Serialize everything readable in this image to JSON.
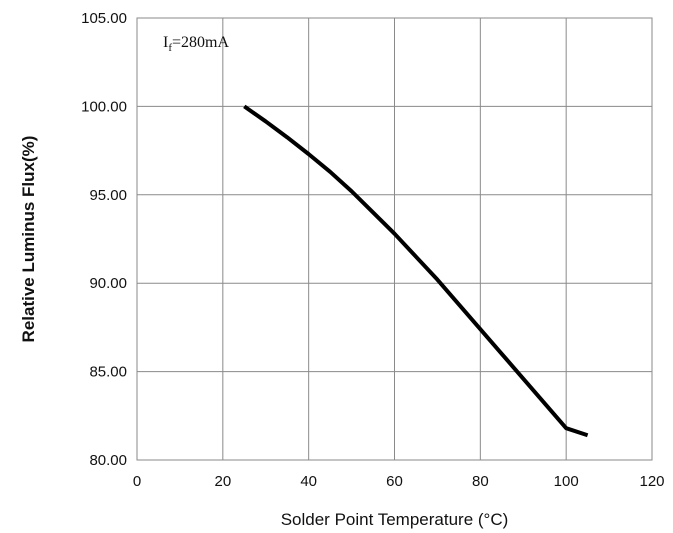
{
  "chart_data": {
    "type": "line",
    "xlabel": "Solder Point Temperature (°C)",
    "ylabel": "Relative Luminus Flux(%)",
    "xlim": [
      0,
      120
    ],
    "ylim": [
      80,
      105
    ],
    "x_ticks": [
      "0",
      "20",
      "40",
      "60",
      "80",
      "100",
      "120"
    ],
    "y_ticks": [
      "80.00",
      "85.00",
      "90.00",
      "95.00",
      "100.00",
      "105.00"
    ],
    "grid": true,
    "annotation": {
      "main": "I",
      "sub": "f",
      "rest": "=280mA"
    },
    "series": [
      {
        "color": "#000000",
        "x": [
          25,
          30,
          35,
          40,
          45,
          50,
          55,
          60,
          65,
          70,
          75,
          80,
          85,
          90,
          95,
          100,
          105
        ],
        "y": [
          100.0,
          99.15,
          98.25,
          97.3,
          96.3,
          95.2,
          94.0,
          92.8,
          91.5,
          90.2,
          88.8,
          87.4,
          86.0,
          84.6,
          83.2,
          81.8,
          81.4
        ]
      }
    ]
  }
}
